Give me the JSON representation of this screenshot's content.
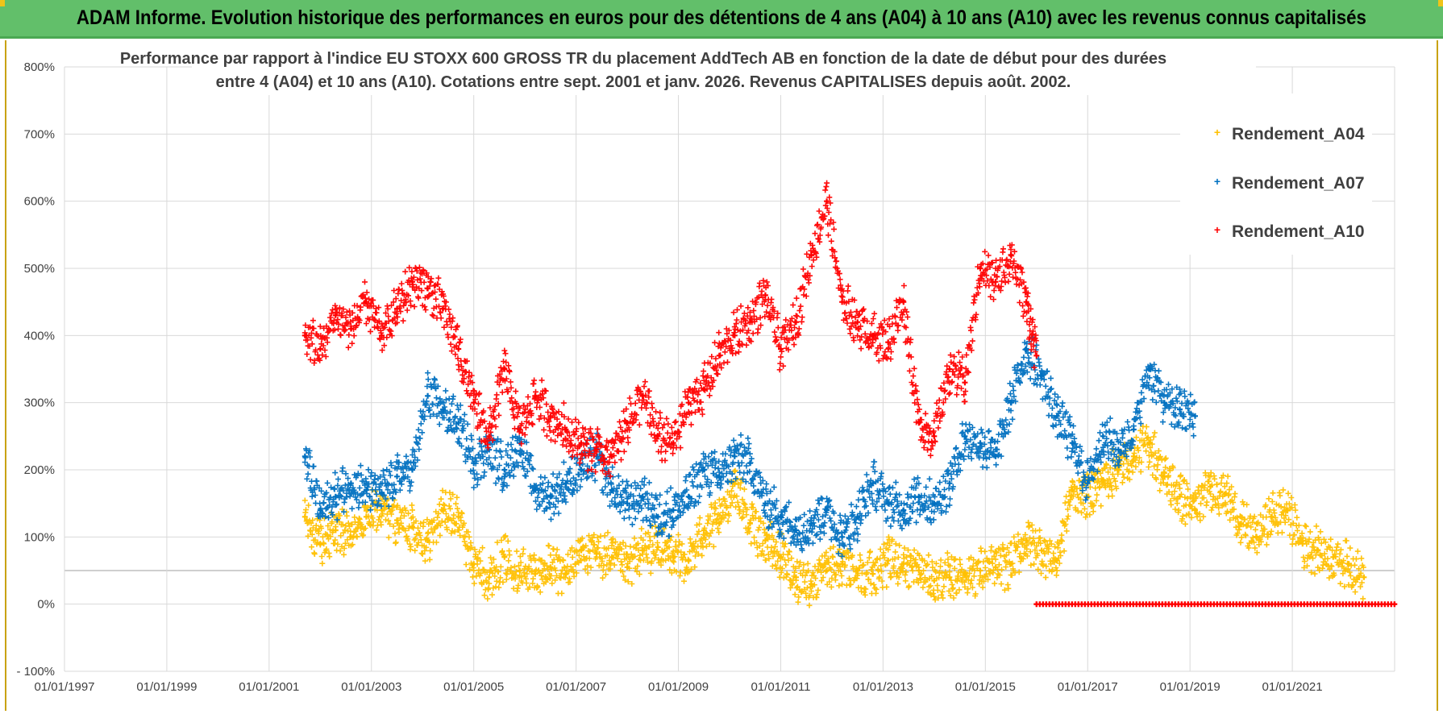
{
  "banner": {
    "title": "ADAM Informe. Evolution historique des performances en euros pour des détentions de 4 ans (A04) à 10 ans (A10) avec les revenus connus capitalisés"
  },
  "colors": {
    "banner_bg": "#62bf6a",
    "series_A04": "#ffc000",
    "series_A07": "#0070c0",
    "series_A10": "#ff0000",
    "grid": "#d9d9d9",
    "text": "#404040"
  },
  "chart_data": {
    "type": "scatter",
    "title_lines": [
      "Performance par rapport à l'indice EU STOXX 600 GROSS TR  du placement AddTech AB en fonction de la date de début pour des durées",
      "entre 4 (A04) et 10 ans (A10). Cotations entre sept. 2001 et janv. 2026. Revenus CAPITALISES depuis août. 2002."
    ],
    "x_tick_labels": [
      "01/01/1997",
      "01/01/1999",
      "01/01/2001",
      "01/01/2003",
      "01/01/2005",
      "01/01/2007",
      "01/01/2009",
      "01/01/2011",
      "01/01/2013",
      "01/01/2015",
      "01/01/2017",
      "01/01/2019",
      "01/01/2021"
    ],
    "xlim": [
      1997.0,
      2023.0
    ],
    "y_tick_labels": [
      "- 100%",
      "0%",
      "100%",
      "200%",
      "300%",
      "400%",
      "500%",
      "600%",
      "700%",
      "800%"
    ],
    "ylim": [
      -100,
      800
    ],
    "y_ref_line": 50,
    "marker": "+",
    "legend_position": "top-right",
    "series": [
      {
        "name": "Rendement_A04",
        "x": [
          2001.7,
          2002.0,
          2002.3,
          2002.6,
          2002.9,
          2003.2,
          2003.5,
          2003.8,
          2004.1,
          2004.4,
          2004.7,
          2005.0,
          2005.3,
          2005.6,
          2005.9,
          2006.2,
          2006.5,
          2006.8,
          2007.1,
          2007.4,
          2007.7,
          2008.0,
          2008.3,
          2008.6,
          2008.9,
          2009.2,
          2009.5,
          2009.8,
          2010.1,
          2010.4,
          2010.7,
          2011.0,
          2011.3,
          2011.6,
          2011.9,
          2012.2,
          2012.5,
          2012.8,
          2013.1,
          2013.4,
          2013.7,
          2014.0,
          2014.3,
          2014.6,
          2014.9,
          2015.2,
          2015.5,
          2015.8,
          2016.1,
          2016.4,
          2016.7,
          2017.0,
          2017.3,
          2017.6,
          2017.9,
          2018.2,
          2018.5,
          2018.8,
          2019.1,
          2019.4,
          2019.7,
          2020.0,
          2020.3,
          2020.6,
          2020.9,
          2021.2,
          2021.5,
          2021.8,
          2022.1,
          2022.4
        ],
        "y": [
          130,
          90,
          110,
          100,
          130,
          140,
          125,
          115,
          95,
          140,
          130,
          60,
          40,
          70,
          50,
          45,
          55,
          45,
          80,
          75,
          70,
          55,
          80,
          85,
          70,
          65,
          110,
          120,
          180,
          120,
          95,
          70,
          40,
          30,
          50,
          60,
          50,
          45,
          65,
          60,
          50,
          35,
          40,
          45,
          50,
          55,
          60,
          95,
          80,
          65,
          170,
          160,
          185,
          200,
          220,
          240,
          190,
          160,
          140,
          175,
          165,
          120,
          100,
          130,
          140,
          90,
          80,
          70,
          60,
          40
        ]
      },
      {
        "name": "Rendement_A07",
        "x": [
          2001.7,
          2002.0,
          2002.3,
          2002.6,
          2002.9,
          2003.2,
          2003.5,
          2003.8,
          2004.1,
          2004.4,
          2004.7,
          2005.0,
          2005.3,
          2005.6,
          2005.9,
          2006.2,
          2006.5,
          2006.8,
          2007.1,
          2007.4,
          2007.7,
          2008.0,
          2008.3,
          2008.6,
          2008.9,
          2009.2,
          2009.5,
          2009.8,
          2010.1,
          2010.4,
          2010.7,
          2011.0,
          2011.3,
          2011.6,
          2011.9,
          2012.2,
          2012.5,
          2012.8,
          2013.1,
          2013.4,
          2013.7,
          2014.0,
          2014.3,
          2014.6,
          2014.9,
          2015.2,
          2015.5,
          2015.8,
          2016.1,
          2016.4,
          2016.7,
          2017.0,
          2017.3,
          2017.6,
          2017.9,
          2018.2,
          2018.5,
          2018.8,
          2019.1
        ],
        "y": [
          220,
          140,
          160,
          180,
          170,
          165,
          190,
          200,
          310,
          290,
          270,
          210,
          230,
          200,
          240,
          170,
          160,
          180,
          200,
          220,
          170,
          150,
          160,
          130,
          140,
          160,
          200,
          190,
          220,
          210,
          150,
          130,
          110,
          120,
          140,
          100,
          130,
          180,
          150,
          140,
          160,
          150,
          180,
          250,
          240,
          220,
          300,
          380,
          340,
          280,
          240,
          180,
          250,
          230,
          260,
          350,
          300,
          290,
          280
        ]
      },
      {
        "name": "Rendement_A10",
        "x": [
          2001.7,
          2002.0,
          2002.3,
          2002.6,
          2002.9,
          2003.2,
          2003.5,
          2003.8,
          2004.1,
          2004.4,
          2004.7,
          2005.0,
          2005.3,
          2005.6,
          2005.9,
          2006.2,
          2006.5,
          2006.8,
          2007.1,
          2007.4,
          2007.7,
          2008.0,
          2008.3,
          2008.6,
          2008.9,
          2009.2,
          2009.5,
          2009.8,
          2010.1,
          2010.4,
          2010.7,
          2011.0,
          2011.3,
          2011.6,
          2011.9,
          2012.2,
          2012.5,
          2012.8,
          2013.1,
          2013.4,
          2013.7,
          2014.0,
          2014.3,
          2014.6,
          2014.9,
          2015.2,
          2015.5,
          2015.8,
          2016.0
        ],
        "y": [
          400,
          380,
          430,
          410,
          450,
          400,
          440,
          480,
          470,
          440,
          380,
          300,
          250,
          350,
          260,
          310,
          280,
          260,
          240,
          230,
          220,
          270,
          310,
          250,
          240,
          300,
          320,
          370,
          400,
          420,
          460,
          380,
          420,
          520,
          600,
          450,
          420,
          400,
          390,
          450,
          270,
          250,
          350,
          330,
          500,
          480,
          520,
          450,
          370
        ],
        "flat_zero_from": 2016.0,
        "flat_zero_to": 2023.0
      }
    ]
  }
}
